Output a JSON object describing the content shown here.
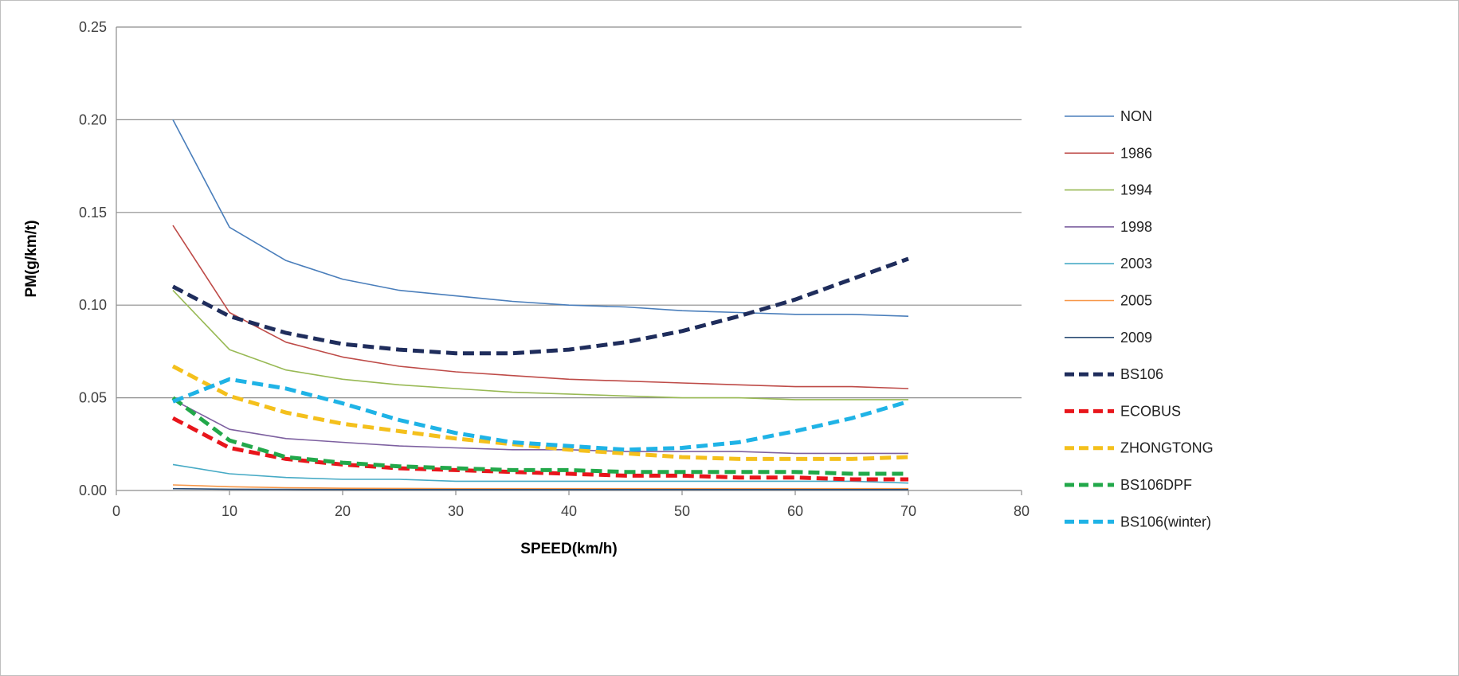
{
  "chart_data": {
    "type": "line",
    "title": "",
    "xlabel": "SPEED(km/h)",
    "ylabel": "PM(g/km/t)",
    "xlim": [
      0,
      80
    ],
    "ylim": [
      0,
      0.25
    ],
    "xticks": [
      0,
      10,
      20,
      30,
      40,
      50,
      60,
      70,
      80
    ],
    "yticks": [
      0,
      0.05,
      0.1,
      0.15,
      0.2,
      0.25
    ],
    "ytick_labels": [
      "0.00",
      "0.05",
      "0.10",
      "0.15",
      "0.20",
      "0.25"
    ],
    "grid": "horizontal",
    "legend_position": "right",
    "x": [
      5,
      10,
      15,
      20,
      25,
      30,
      35,
      40,
      45,
      50,
      55,
      60,
      65,
      70
    ],
    "series": [
      {
        "name": "NON",
        "color": "#4a7ebb",
        "style": "solid",
        "values": [
          0.2,
          0.142,
          0.124,
          0.114,
          0.108,
          0.105,
          0.102,
          0.1,
          0.099,
          0.097,
          0.096,
          0.095,
          0.095,
          0.094
        ]
      },
      {
        "name": "1986",
        "color": "#be4b48",
        "style": "solid",
        "values": [
          0.143,
          0.096,
          0.08,
          0.072,
          0.067,
          0.064,
          0.062,
          0.06,
          0.059,
          0.058,
          0.057,
          0.056,
          0.056,
          0.055
        ]
      },
      {
        "name": "1994",
        "color": "#98b954",
        "style": "solid",
        "values": [
          0.108,
          0.076,
          0.065,
          0.06,
          0.057,
          0.055,
          0.053,
          0.052,
          0.051,
          0.05,
          0.05,
          0.049,
          0.049,
          0.049
        ]
      },
      {
        "name": "1998",
        "color": "#7d60a0",
        "style": "solid",
        "values": [
          0.049,
          0.033,
          0.028,
          0.026,
          0.024,
          0.023,
          0.022,
          0.022,
          0.021,
          0.021,
          0.021,
          0.02,
          0.02,
          0.02
        ]
      },
      {
        "name": "2003",
        "color": "#46aac5",
        "style": "solid",
        "values": [
          0.014,
          0.009,
          0.007,
          0.006,
          0.006,
          0.005,
          0.005,
          0.005,
          0.005,
          0.005,
          0.005,
          0.005,
          0.005,
          0.004
        ]
      },
      {
        "name": "2005",
        "color": "#f79646",
        "style": "solid",
        "values": [
          0.003,
          0.002,
          0.0015,
          0.0012,
          0.0011,
          0.001,
          0.001,
          0.001,
          0.001,
          0.001,
          0.001,
          0.001,
          0.001,
          0.001
        ]
      },
      {
        "name": "2009",
        "color": "#2c4d75",
        "style": "solid",
        "values": [
          0.001,
          0.0007,
          0.0006,
          0.0005,
          0.0005,
          0.0005,
          0.0005,
          0.0005,
          0.0005,
          0.0005,
          0.0005,
          0.0005,
          0.0005,
          0.0005
        ]
      },
      {
        "name": "BS106",
        "color": "#1f2d5c",
        "style": "dashed",
        "values": [
          0.11,
          0.094,
          0.085,
          0.079,
          0.076,
          0.074,
          0.074,
          0.076,
          0.08,
          0.086,
          0.094,
          0.103,
          0.114,
          0.125
        ]
      },
      {
        "name": "ECOBUS",
        "color": "#e8151b",
        "style": "dashed",
        "values": [
          0.039,
          0.023,
          0.017,
          0.014,
          0.012,
          0.011,
          0.01,
          0.009,
          0.008,
          0.008,
          0.007,
          0.007,
          0.006,
          0.006
        ]
      },
      {
        "name": "ZHONGTONG",
        "color": "#f4c01c",
        "style": "dashed",
        "values": [
          0.067,
          0.051,
          0.042,
          0.036,
          0.032,
          0.028,
          0.025,
          0.022,
          0.02,
          0.018,
          0.017,
          0.017,
          0.017,
          0.018
        ]
      },
      {
        "name": "BS106DPF",
        "color": "#22a84a",
        "style": "dashed",
        "values": [
          0.05,
          0.027,
          0.018,
          0.015,
          0.013,
          0.012,
          0.011,
          0.011,
          0.01,
          0.01,
          0.01,
          0.01,
          0.009,
          0.009
        ]
      },
      {
        "name": "BS106(winter)",
        "color": "#1fb3e6",
        "style": "dashed",
        "values": [
          0.048,
          0.06,
          0.055,
          0.047,
          0.038,
          0.031,
          0.026,
          0.024,
          0.022,
          0.023,
          0.026,
          0.032,
          0.039,
          0.048
        ]
      }
    ]
  }
}
